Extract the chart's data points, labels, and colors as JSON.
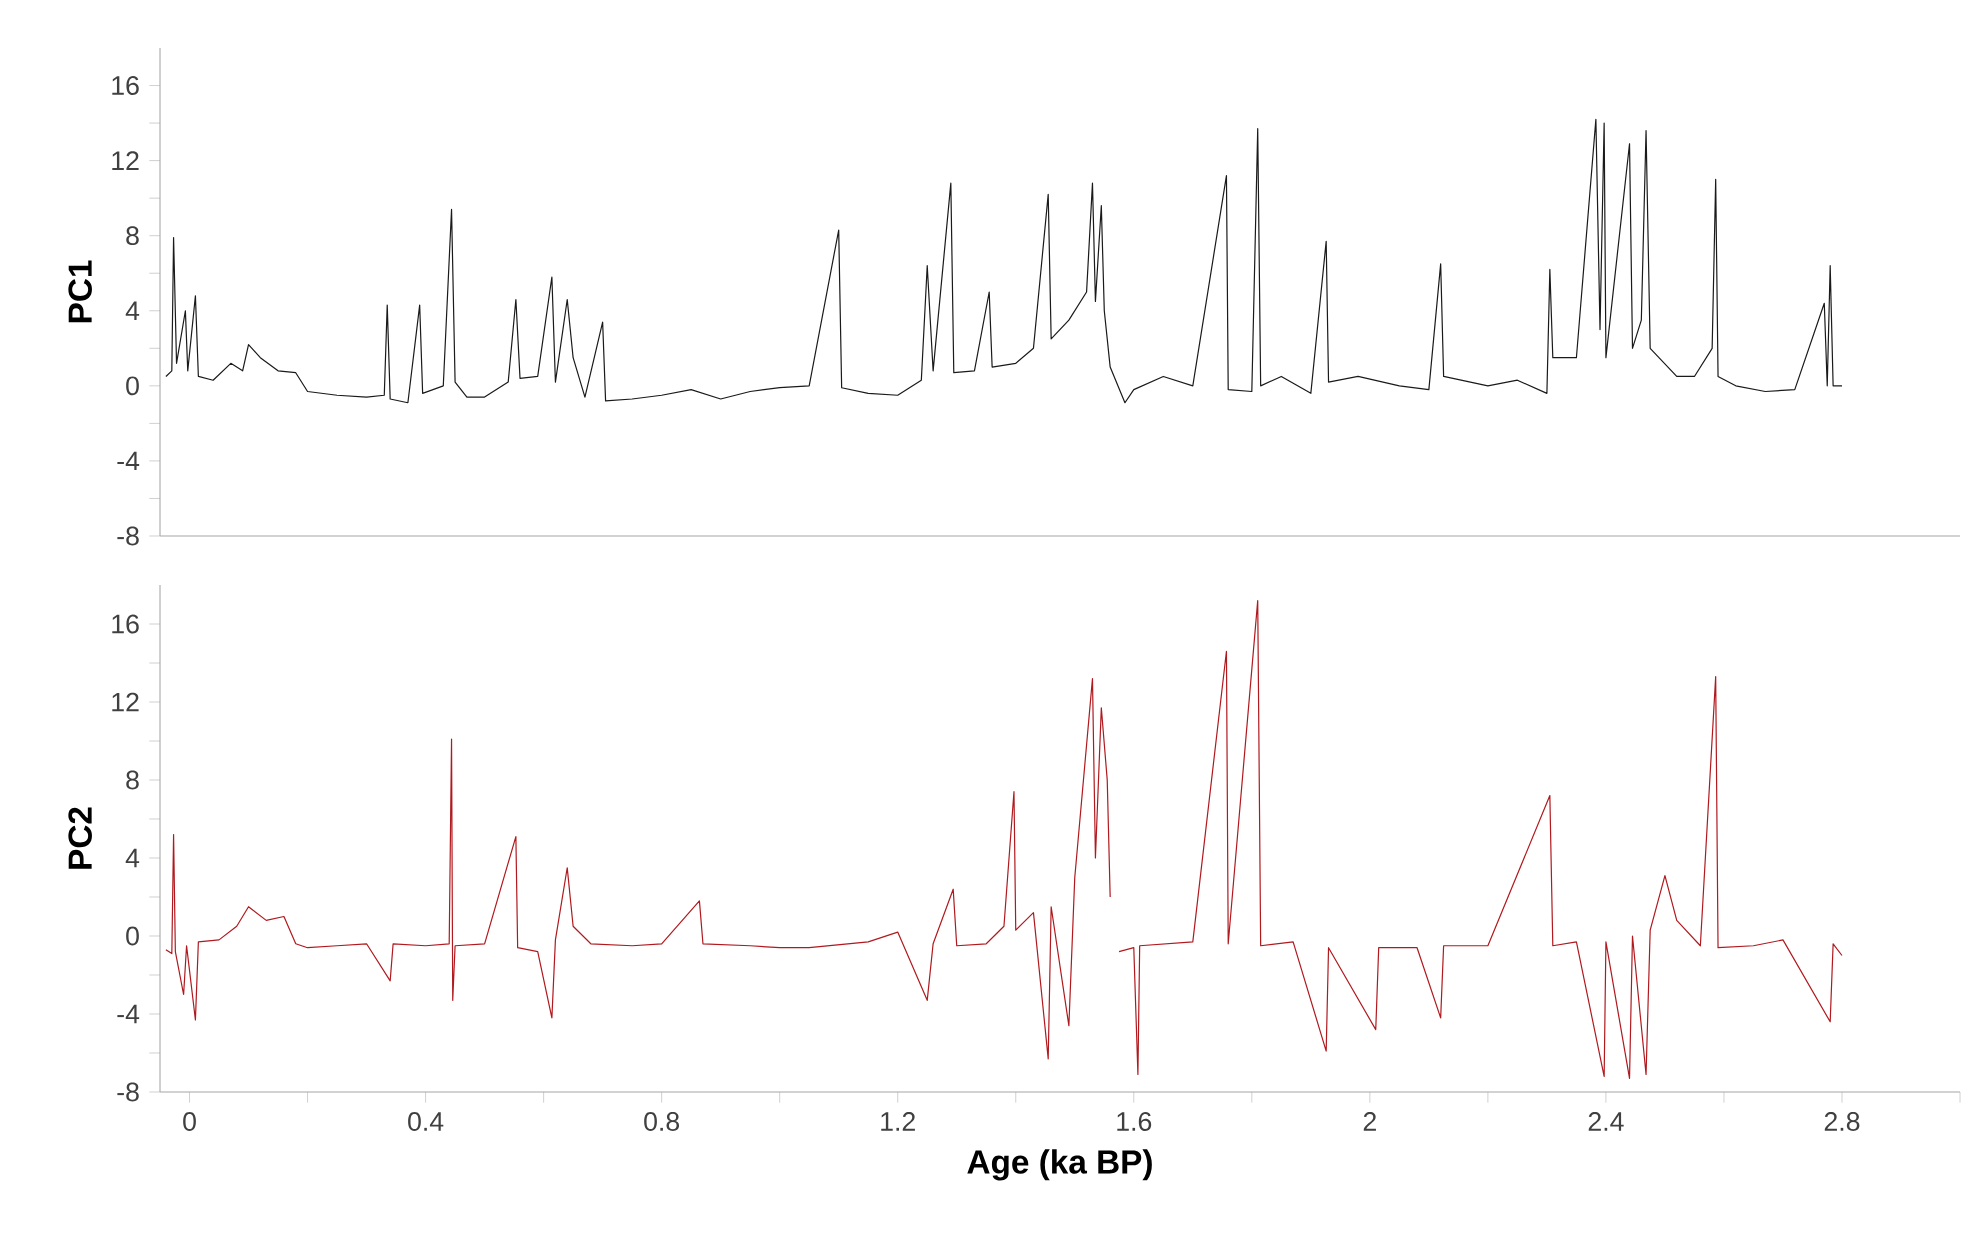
{
  "chart_data": [
    {
      "type": "line",
      "ylabel": "PC1",
      "xlim": [
        -0.05,
        3.0
      ],
      "ylim": [
        -8,
        18
      ],
      "tick_labels": "y",
      "yticks": [
        -8,
        {
          "value": -6,
          "label": null
        },
        -4,
        {
          "value": -2,
          "label": null
        },
        0,
        {
          "value": 2,
          "label": null
        },
        4,
        {
          "value": 6,
          "label": null
        },
        8,
        {
          "value": 10,
          "label": null
        },
        12,
        {
          "value": 14,
          "label": null
        },
        16
      ],
      "series": [
        {
          "color": "#1a1a1a",
          "x": [
            -0.04,
            -0.03,
            -0.027,
            -0.022,
            -0.007,
            -0.003,
            0.01,
            0.015,
            0.04,
            0.07,
            0.09,
            0.1,
            0.12,
            0.15,
            0.18,
            0.2,
            0.25,
            0.3,
            0.33,
            0.335,
            0.34,
            0.37,
            0.39,
            0.395,
            0.43,
            0.444,
            0.45,
            0.47,
            0.5,
            0.54,
            0.553,
            0.56,
            0.59,
            0.614,
            0.62,
            0.64,
            0.65,
            0.67,
            0.7,
            0.705,
            0.75,
            0.8,
            0.85,
            0.9,
            0.95,
            1.0,
            1.05,
            1.1,
            1.105,
            1.15,
            1.2,
            1.24,
            1.25,
            1.26,
            1.29,
            1.295,
            1.33,
            1.355,
            1.36,
            1.4,
            1.43,
            1.455,
            1.46,
            1.49,
            1.52,
            1.53,
            1.535,
            1.545,
            1.55,
            1.56,
            1.585,
            1.6,
            1.65,
            1.7,
            1.757,
            1.76,
            1.8,
            1.81,
            1.815,
            1.85,
            1.9,
            1.926,
            1.93,
            1.98,
            2.05,
            2.1,
            2.12,
            2.125,
            2.2,
            2.25,
            2.3,
            2.305,
            2.31,
            2.35,
            2.383,
            2.39,
            2.397,
            2.4,
            2.44,
            2.445,
            2.46,
            2.468,
            2.475,
            2.52,
            2.55,
            2.58,
            2.586,
            2.59,
            2.62,
            2.67,
            2.72,
            2.77,
            2.775,
            2.78,
            2.785,
            2.8
          ],
          "values": [
            0.5,
            0.8,
            7.9,
            1.2,
            4,
            0.8,
            4.8,
            0.5,
            0.3,
            1.2,
            0.8,
            2.2,
            1.5,
            0.8,
            0.7,
            -0.3,
            -0.5,
            -0.6,
            -0.5,
            4.3,
            -0.7,
            -0.9,
            4.3,
            -0.4,
            0,
            9.4,
            0.2,
            -0.6,
            -0.6,
            0.2,
            4.6,
            0.4,
            0.5,
            5.8,
            0.2,
            4.6,
            1.5,
            -0.6,
            3.4,
            -0.8,
            -0.7,
            -0.5,
            -0.2,
            -0.7,
            -0.3,
            -0.1,
            0,
            8.3,
            -0.1,
            -0.4,
            -0.5,
            0.3,
            6.4,
            0.8,
            10.8,
            0.7,
            0.8,
            5,
            1.0,
            1.2,
            2,
            10.2,
            2.5,
            3.5,
            5,
            10.8,
            4.5,
            9.6,
            4,
            1,
            -0.9,
            -0.2,
            0.5,
            0,
            11.2,
            -0.2,
            -0.3,
            13.7,
            0,
            0.5,
            -0.4,
            7.7,
            0.2,
            0.5,
            0,
            -0.2,
            6.5,
            0.5,
            0,
            0.3,
            -0.4,
            6.2,
            1.5,
            1.5,
            14.2,
            3,
            14,
            1.5,
            12.9,
            2,
            3.5,
            13.6,
            2,
            0.5,
            0.5,
            2,
            11,
            0.5,
            0,
            -0.3,
            -0.2,
            4.4,
            0,
            6.4,
            0,
            0
          ]
        }
      ]
    },
    {
      "type": "line",
      "ylabel": "PC2",
      "xlabel": "Age (ka BP)",
      "xlim": [
        -0.05,
        3.0
      ],
      "ylim": [
        -8,
        18
      ],
      "xticks": [
        0,
        {
          "value": 0.2,
          "label": null
        },
        0.4,
        {
          "value": 0.6,
          "label": null
        },
        0.8,
        {
          "value": 1.0,
          "label": null
        },
        1.2,
        {
          "value": 1.4,
          "label": null
        },
        1.6,
        {
          "value": 1.8,
          "label": null
        },
        2,
        {
          "value": 2.2,
          "label": null
        },
        2.4,
        {
          "value": 2.6,
          "label": null
        },
        2.8,
        {
          "value": 3.0,
          "label": null
        }
      ],
      "yticks": [
        -8,
        {
          "value": -6,
          "label": null
        },
        -4,
        {
          "value": -2,
          "label": null
        },
        0,
        {
          "value": 2,
          "label": null
        },
        4,
        {
          "value": 6,
          "label": null
        },
        8,
        {
          "value": 10,
          "label": null
        },
        12,
        {
          "value": 14,
          "label": null
        },
        16
      ],
      "series": [
        {
          "color": "#b0191e",
          "x": [
            -0.04,
            -0.03,
            -0.027,
            -0.024,
            -0.01,
            -0.005,
            0.01,
            0.015,
            0.05,
            0.08,
            0.1,
            0.13,
            0.16,
            0.18,
            0.2,
            0.25,
            0.3,
            0.34,
            0.345,
            0.4,
            0.44,
            0.444,
            0.446,
            0.45,
            0.5,
            0.553,
            0.556,
            0.59,
            0.614,
            0.62,
            0.64,
            0.65,
            0.68,
            0.75,
            0.8,
            0.864,
            0.87,
            0.95,
            1.0,
            1.05,
            1.15,
            1.2,
            1.25,
            1.26,
            1.294,
            1.3,
            1.35,
            1.38,
            1.397,
            1.4,
            1.43,
            1.455,
            1.46,
            1.49,
            1.5,
            1.53,
            1.535,
            1.545,
            1.555,
            1.56,
            1.565,
            1.575,
            1.6,
            1.607,
            1.61,
            1.7,
            1.757,
            1.76,
            1.81,
            1.815,
            1.87,
            1.926,
            1.93,
            2.01,
            2.015,
            2.08,
            2.12,
            2.125,
            2.2,
            2.305,
            2.31,
            2.35,
            2.397,
            2.4,
            2.44,
            2.445,
            2.468,
            2.475,
            2.5,
            2.52,
            2.56,
            2.586,
            2.59,
            2.65,
            2.7,
            2.78,
            2.785,
            2.8
          ],
          "values": [
            -0.7,
            -0.9,
            5.2,
            -0.8,
            -3,
            -0.5,
            -4.3,
            -0.3,
            -0.2,
            0.5,
            1.5,
            0.8,
            1,
            -0.4,
            -0.6,
            -0.5,
            -0.4,
            -2.3,
            -0.4,
            -0.5,
            -0.4,
            10.1,
            -3.3,
            -0.5,
            -0.4,
            5.1,
            -0.6,
            -0.8,
            -4.2,
            -0.2,
            3.5,
            0.5,
            -0.4,
            -0.5,
            -0.4,
            1.8,
            -0.4,
            -0.5,
            -0.6,
            -0.6,
            -0.3,
            0.2,
            -3.3,
            -0.4,
            2.4,
            -0.5,
            -0.4,
            0.5,
            7.4,
            0.3,
            1.2,
            -6.3,
            1.5,
            -4.6,
            3,
            13.2,
            4,
            11.7,
            8,
            2,
            null,
            -0.8,
            -0.6,
            -7.1,
            -0.5,
            -0.3,
            14.6,
            -0.4,
            17.2,
            -0.5,
            -0.3,
            -5.9,
            -0.6,
            -4.8,
            -0.6,
            -0.6,
            -4.2,
            -0.5,
            -0.5,
            7.2,
            -0.5,
            -0.3,
            -7.2,
            -0.3,
            -7.3,
            0,
            -7.1,
            0.3,
            3.1,
            0.8,
            -0.5,
            13.3,
            -0.6,
            -0.5,
            -0.2,
            -4.4,
            -0.4,
            -1.0
          ]
        }
      ]
    }
  ]
}
